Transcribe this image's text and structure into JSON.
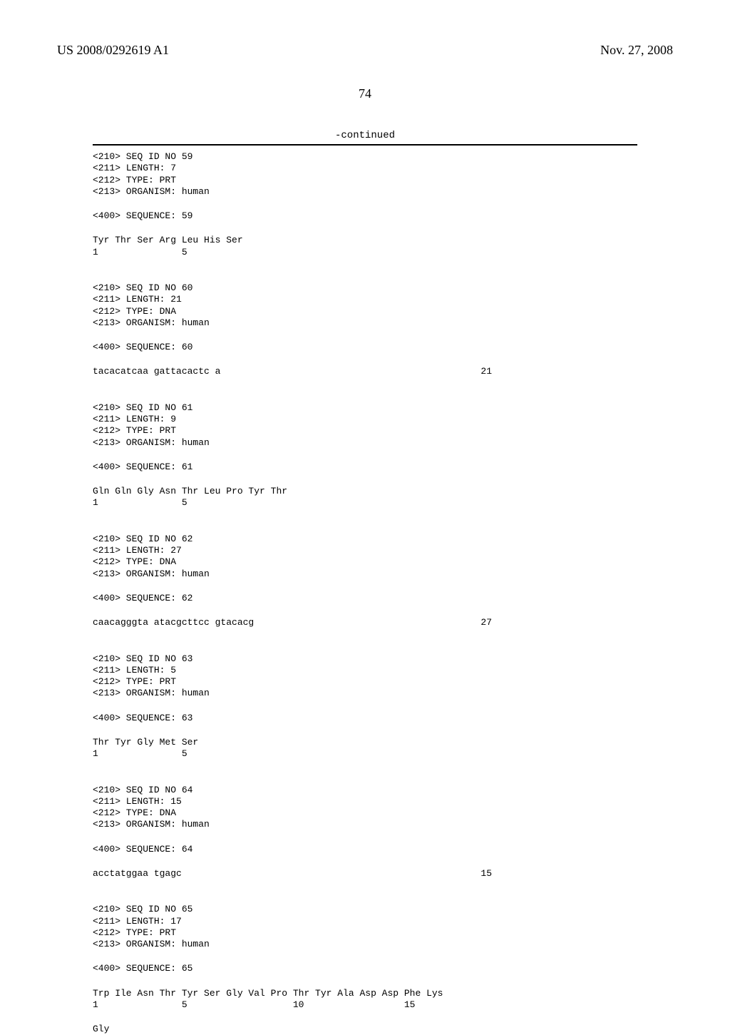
{
  "header": {
    "pub_number": "US 2008/0292619 A1",
    "pub_date": "Nov. 27, 2008"
  },
  "page_number": "74",
  "continued_label": "-continued",
  "blocks": [
    {
      "lines": [
        "<210> SEQ ID NO 59",
        "<211> LENGTH: 7",
        "<212> TYPE: PRT",
        "<213> ORGANISM: human"
      ]
    },
    {
      "lines": [
        "<400> SEQUENCE: 59"
      ]
    },
    {
      "lines": [
        "Tyr Thr Ser Arg Leu His Ser",
        "1               5"
      ]
    },
    {
      "lines": [
        "",
        "<210> SEQ ID NO 60",
        "<211> LENGTH: 21",
        "<212> TYPE: DNA",
        "<213> ORGANISM: human"
      ]
    },
    {
      "lines": [
        "<400> SEQUENCE: 60"
      ]
    },
    {
      "seq": "tacacatcaa gattacactc a",
      "count": "21"
    },
    {
      "lines": [
        "",
        "<210> SEQ ID NO 61",
        "<211> LENGTH: 9",
        "<212> TYPE: PRT",
        "<213> ORGANISM: human"
      ]
    },
    {
      "lines": [
        "<400> SEQUENCE: 61"
      ]
    },
    {
      "lines": [
        "Gln Gln Gly Asn Thr Leu Pro Tyr Thr",
        "1               5"
      ]
    },
    {
      "lines": [
        "",
        "<210> SEQ ID NO 62",
        "<211> LENGTH: 27",
        "<212> TYPE: DNA",
        "<213> ORGANISM: human"
      ]
    },
    {
      "lines": [
        "<400> SEQUENCE: 62"
      ]
    },
    {
      "seq": "caacagggta atacgcttcc gtacacg",
      "count": "27"
    },
    {
      "lines": [
        "",
        "<210> SEQ ID NO 63",
        "<211> LENGTH: 5",
        "<212> TYPE: PRT",
        "<213> ORGANISM: human"
      ]
    },
    {
      "lines": [
        "<400> SEQUENCE: 63"
      ]
    },
    {
      "lines": [
        "Thr Tyr Gly Met Ser",
        "1               5"
      ]
    },
    {
      "lines": [
        "",
        "<210> SEQ ID NO 64",
        "<211> LENGTH: 15",
        "<212> TYPE: DNA",
        "<213> ORGANISM: human"
      ]
    },
    {
      "lines": [
        "<400> SEQUENCE: 64"
      ]
    },
    {
      "seq": "acctatggaa tgagc",
      "count": "15"
    },
    {
      "lines": [
        "",
        "<210> SEQ ID NO 65",
        "<211> LENGTH: 17",
        "<212> TYPE: PRT",
        "<213> ORGANISM: human"
      ]
    },
    {
      "lines": [
        "<400> SEQUENCE: 65"
      ]
    },
    {
      "lines": [
        "Trp Ile Asn Thr Tyr Ser Gly Val Pro Thr Tyr Ala Asp Asp Phe Lys",
        "1               5                   10                  15"
      ]
    },
    {
      "lines": [
        "Gly"
      ]
    }
  ]
}
